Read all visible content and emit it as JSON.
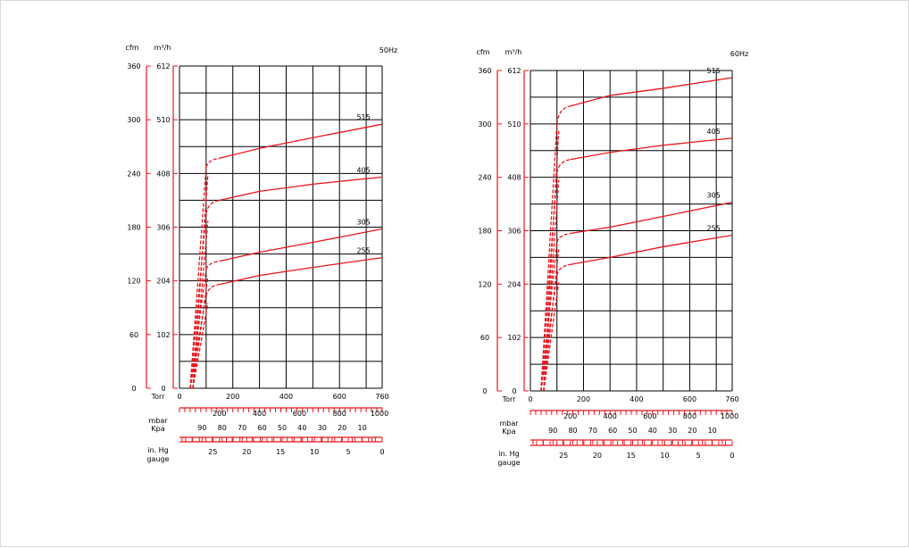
{
  "chart_data": [
    {
      "type": "line",
      "freq_label": "50Hz",
      "cfm_unit": "cfm",
      "m3h_unit": "m³/h",
      "ylim_cfm": [
        0,
        360
      ],
      "ylim_m3h": [
        0,
        612
      ],
      "cfm_ticks": [
        "0",
        "60",
        "120",
        "180",
        "240",
        "300",
        "360"
      ],
      "m3h_ticks": [
        "0",
        "102",
        "204",
        "306",
        "408",
        "510",
        "612"
      ],
      "xlim_torr": [
        0,
        760
      ],
      "torr_label": "Torr",
      "torr_ticks": [
        "0",
        "200",
        "400",
        "600",
        "760"
      ],
      "mbar_label": "mbar",
      "mbar_ticks": [
        "200",
        "400",
        "600",
        "800",
        "1000"
      ],
      "kpa_label": "Kpa",
      "kpa_ticks": [
        "90",
        "80",
        "70",
        "60",
        "50",
        "40",
        "30",
        "20",
        "10"
      ],
      "inhg_label": "in. Hg",
      "gauge_label": "gauge",
      "inhg_ticks": [
        "25",
        "20",
        "15",
        "10",
        "5",
        "0"
      ],
      "series": [
        {
          "name": "515",
          "x_torr": [
            40,
            100,
            150,
            300,
            500,
            760
          ],
          "y_cfm": [
            0,
            247,
            257,
            268,
            280,
            295
          ]
        },
        {
          "name": "405",
          "x_torr": [
            40,
            100,
            150,
            300,
            500,
            760
          ],
          "y_cfm": [
            0,
            195,
            210,
            220,
            228,
            236
          ]
        },
        {
          "name": "305",
          "x_torr": [
            40,
            100,
            150,
            300,
            500,
            760
          ],
          "y_cfm": [
            0,
            133,
            142,
            152,
            163,
            178
          ]
        },
        {
          "name": "255",
          "x_torr": [
            40,
            100,
            150,
            300,
            500,
            760
          ],
          "y_cfm": [
            0,
            103,
            116,
            126,
            135,
            146
          ]
        }
      ]
    },
    {
      "type": "line",
      "freq_label": "60Hz",
      "cfm_unit": "cfm",
      "m3h_unit": "m³/h",
      "ylim_cfm": [
        0,
        360
      ],
      "ylim_m3h": [
        0,
        612
      ],
      "cfm_ticks": [
        "0",
        "60",
        "120",
        "180",
        "240",
        "300",
        "360"
      ],
      "m3h_ticks": [
        "0",
        "102",
        "204",
        "306",
        "408",
        "510",
        "612"
      ],
      "xlim_torr": [
        0,
        760
      ],
      "torr_label": "Torr",
      "torr_ticks": [
        "0",
        "200",
        "400",
        "600",
        "760"
      ],
      "mbar_label": "mbar",
      "mbar_ticks": [
        "200",
        "400",
        "600",
        "800",
        "1000"
      ],
      "kpa_label": "Kpa",
      "kpa_ticks": [
        "90",
        "80",
        "70",
        "60",
        "50",
        "40",
        "30",
        "20",
        "10"
      ],
      "inhg_label": "in. Hg",
      "gauge_label": "gauge",
      "inhg_ticks": [
        "25",
        "20",
        "15",
        "10",
        "5",
        "0"
      ],
      "series": [
        {
          "name": "515",
          "x_torr": [
            40,
            100,
            150,
            300,
            500,
            760
          ],
          "y_cfm": [
            0,
            300,
            320,
            332,
            340,
            352
          ]
        },
        {
          "name": "405",
          "x_torr": [
            40,
            100,
            150,
            300,
            500,
            760
          ],
          "y_cfm": [
            0,
            245,
            260,
            268,
            276,
            284
          ]
        },
        {
          "name": "305",
          "x_torr": [
            40,
            100,
            150,
            300,
            500,
            760
          ],
          "y_cfm": [
            0,
            167,
            177,
            184,
            196,
            212
          ]
        },
        {
          "name": "255",
          "x_torr": [
            40,
            100,
            150,
            300,
            500,
            760
          ],
          "y_cfm": [
            0,
            130,
            142,
            150,
            162,
            175
          ]
        }
      ]
    }
  ]
}
